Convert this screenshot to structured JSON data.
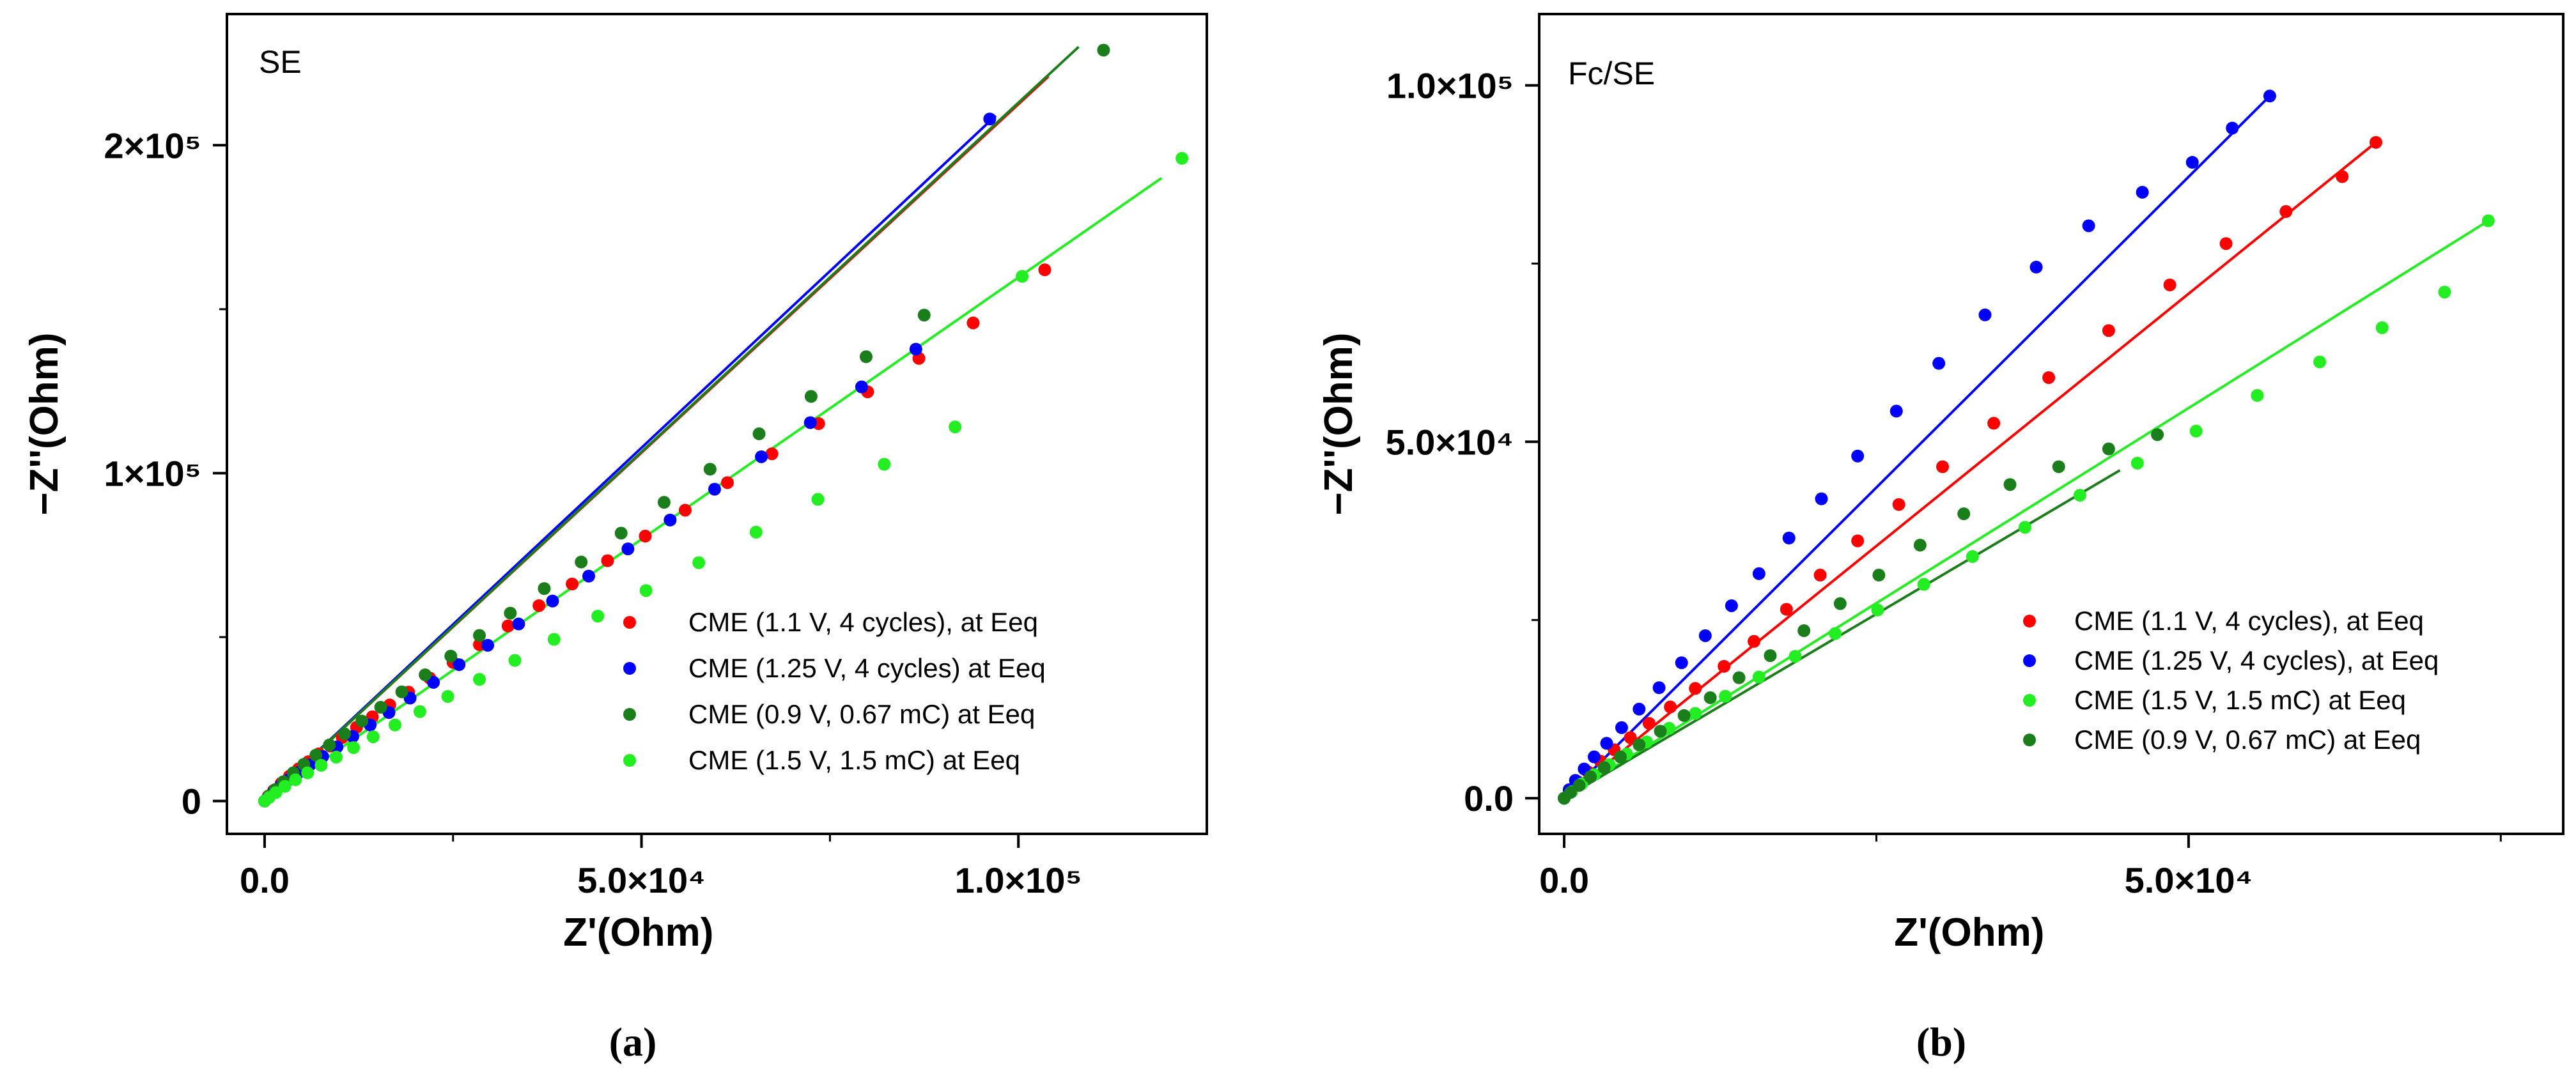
{
  "captions": [
    "(a)",
    "(b)"
  ],
  "chart_data": [
    {
      "type": "scatter",
      "panel_label": "SE",
      "xlabel": "Z'(Ohm)",
      "ylabel": "−Z''(Ohm)",
      "xlim": [
        -5000,
        125000
      ],
      "ylim": [
        -10000,
        240000
      ],
      "xticks": [
        0,
        50000,
        100000
      ],
      "xtick_labels": [
        "0.0",
        "5.0×10⁴",
        "1.0×10⁵"
      ],
      "yticks": [
        0,
        100000,
        200000
      ],
      "ytick_labels": [
        "0",
        "1×10⁵",
        "2×10⁵"
      ],
      "grid": false,
      "legend_position": "bottom-right",
      "series": [
        {
          "name": "CME (1.1 V, 4 cycles), at Eeq",
          "color": "#ff0000",
          "x": [
            0,
            500,
            1200,
            2200,
            3300,
            4500,
            5800,
            7200,
            8700,
            10300,
            12200,
            14300,
            16600,
            19100,
            21900,
            25000,
            28500,
            32300,
            36400,
            40800,
            45500,
            50500,
            55800,
            61400,
            67300,
            73500,
            80000,
            86800,
            94000,
            103500
          ],
          "y": [
            0,
            1500,
            3200,
            5400,
            7600,
            9800,
            12000,
            14400,
            16800,
            19400,
            22500,
            25700,
            29300,
            33200,
            37500,
            42300,
            47700,
            53400,
            59600,
            66200,
            73300,
            80800,
            88700,
            97100,
            105900,
            115100,
            124800,
            135000,
            145800,
            162000
          ],
          "fit": {
            "x": [
              0,
              104000
            ],
            "y": [
              0,
              221000
            ]
          }
        },
        {
          "name": "CME (1.25 V, 4 cycles) at Eeq",
          "color": "#0000ff",
          "x": [
            0,
            500,
            1200,
            2200,
            3300,
            4500,
            6000,
            7700,
            9600,
            11700,
            14000,
            16500,
            19300,
            22400,
            25800,
            29600,
            33700,
            38200,
            43000,
            48200,
            53800,
            59700,
            65900,
            72400,
            79200,
            86400,
            96200
          ],
          "y": [
            0,
            1300,
            2900,
            4800,
            6700,
            8700,
            11000,
            13600,
            16500,
            19700,
            23200,
            27000,
            31400,
            36200,
            41600,
            47500,
            54000,
            61000,
            68600,
            76900,
            85700,
            95100,
            105000,
            115400,
            126300,
            137800,
            208000
          ],
          "fit": {
            "x": [
              0,
              97000
            ],
            "y": [
              0,
              209000
            ]
          }
        },
        {
          "name": "CME (0.9 V, 0.67 mC) at Eeq",
          "color": "#1a7f1a",
          "x": [
            0,
            600,
            1400,
            2500,
            3800,
            5200,
            6800,
            8600,
            10600,
            12900,
            15400,
            18200,
            21300,
            24700,
            28500,
            32600,
            37100,
            42000,
            47300,
            53000,
            59100,
            65600,
            72500,
            79800,
            87500,
            111300
          ],
          "y": [
            0,
            1600,
            3500,
            5900,
            8600,
            11200,
            14000,
            17100,
            20500,
            24400,
            28600,
            33300,
            38500,
            44200,
            50500,
            57300,
            64800,
            72900,
            81700,
            91100,
            101200,
            112000,
            123400,
            135500,
            148200,
            229000
          ],
          "fit": {
            "x": [
              0,
              108000
            ],
            "y": [
              0,
              230000
            ]
          }
        },
        {
          "name": "CME (1.5 V, 1.5 mC) at Eeq",
          "color": "#22ee22",
          "x": [
            0,
            600,
            1500,
            2700,
            4100,
            5700,
            7500,
            9500,
            11800,
            14400,
            17300,
            20600,
            24300,
            28500,
            33200,
            38400,
            44200,
            50600,
            57600,
            65200,
            73400,
            82200,
            91600,
            100500,
            121700
          ],
          "y": [
            0,
            1100,
            2600,
            4500,
            6500,
            8600,
            10900,
            13400,
            16300,
            19600,
            23200,
            27300,
            31900,
            37100,
            42900,
            49300,
            56400,
            64200,
            72700,
            82000,
            92000,
            102700,
            114100,
            160000,
            196000
          ],
          "fit": {
            "x": [
              0,
              119000
            ],
            "y": [
              0,
              190000
            ]
          }
        }
      ]
    },
    {
      "type": "scatter",
      "panel_label": "Fc/SE",
      "xlabel": "Z'(Ohm)",
      "ylabel": "−Z''(Ohm)",
      "xlim": [
        -2000,
        80000
      ],
      "ylim": [
        -5000,
        110000
      ],
      "xticks": [
        0,
        50000
      ],
      "xtick_labels": [
        "0.0",
        "5.0×10⁴"
      ],
      "yticks": [
        0,
        50000,
        100000
      ],
      "ytick_labels": [
        "0.0",
        "5.0×10⁴",
        "1.0×10⁵"
      ],
      "grid": false,
      "legend_position": "bottom-right",
      "series": [
        {
          "name": "CME (1.1 V, 4 cycles), at Eeq",
          "color": "#ff0000",
          "x": [
            0,
            500,
            1100,
            1900,
            2900,
            4000,
            5300,
            6800,
            8500,
            10500,
            12800,
            15200,
            17800,
            20500,
            23500,
            26800,
            30300,
            34400,
            38800,
            43600,
            48500,
            53000,
            57800,
            62300,
            65000
          ],
          "y": [
            0,
            1100,
            2300,
            3700,
            5200,
            6800,
            8500,
            10500,
            12800,
            15400,
            18500,
            22000,
            26500,
            31300,
            36100,
            41200,
            46500,
            52600,
            59000,
            65600,
            72000,
            77800,
            82300,
            87200,
            92000
          ],
          "fit": {
            "x": [
              0,
              65000
            ],
            "y": [
              0,
              92000
            ]
          }
        },
        {
          "name": "CME (1.25 V, 4 cycles), at Eeq",
          "color": "#0000ff",
          "x": [
            0,
            400,
            900,
            1600,
            2400,
            3400,
            4600,
            6000,
            7600,
            9400,
            11300,
            13400,
            15600,
            18000,
            20600,
            23500,
            26600,
            30000,
            33700,
            37800,
            42000,
            46300,
            50300,
            53500,
            56500
          ],
          "y": [
            0,
            1200,
            2500,
            4100,
            5800,
            7700,
            9900,
            12500,
            15500,
            19000,
            22800,
            27000,
            31500,
            36500,
            42000,
            48000,
            54300,
            61000,
            67800,
            74500,
            80300,
            85000,
            89200,
            94000,
            98500
          ],
          "fit": {
            "x": [
              0,
              56500
            ],
            "y": [
              0,
              98500
            ]
          }
        },
        {
          "name": "CME (1.5 V, 1.5 mC) at Eeq",
          "color": "#22ee22",
          "x": [
            0,
            600,
            1400,
            2400,
            3600,
            5000,
            6600,
            8400,
            10500,
            12900,
            15600,
            18500,
            21700,
            25100,
            28800,
            32700,
            36900,
            41300,
            45900,
            50600,
            55500,
            60500,
            65500,
            70500,
            74000
          ],
          "y": [
            0,
            900,
            2000,
            3300,
            4700,
            6200,
            7900,
            9800,
            11900,
            14300,
            17000,
            19900,
            23100,
            26400,
            30000,
            33900,
            38000,
            42500,
            47000,
            51500,
            56500,
            61200,
            66000,
            71000,
            81000
          ],
          "fit": {
            "x": [
              0,
              74000
            ],
            "y": [
              0,
              81000
            ]
          }
        },
        {
          "name": "CME (0.9 V, 0.67 mC) at Eeq",
          "color": "#1a7f1a",
          "x": [
            0,
            500,
            1200,
            2100,
            3200,
            4500,
            6000,
            7700,
            9600,
            11700,
            14000,
            16500,
            19200,
            22100,
            25200,
            28500,
            32000,
            35700,
            39600,
            43600,
            47500
          ],
          "y": [
            0,
            800,
            1800,
            3000,
            4300,
            5800,
            7500,
            9400,
            11600,
            14100,
            16900,
            20000,
            23500,
            27300,
            31300,
            35500,
            39900,
            44000,
            46500,
            49000,
            51000
          ],
          "fit": {
            "x": [
              0,
              44500
            ],
            "y": [
              0,
              46000
            ]
          }
        }
      ]
    }
  ]
}
